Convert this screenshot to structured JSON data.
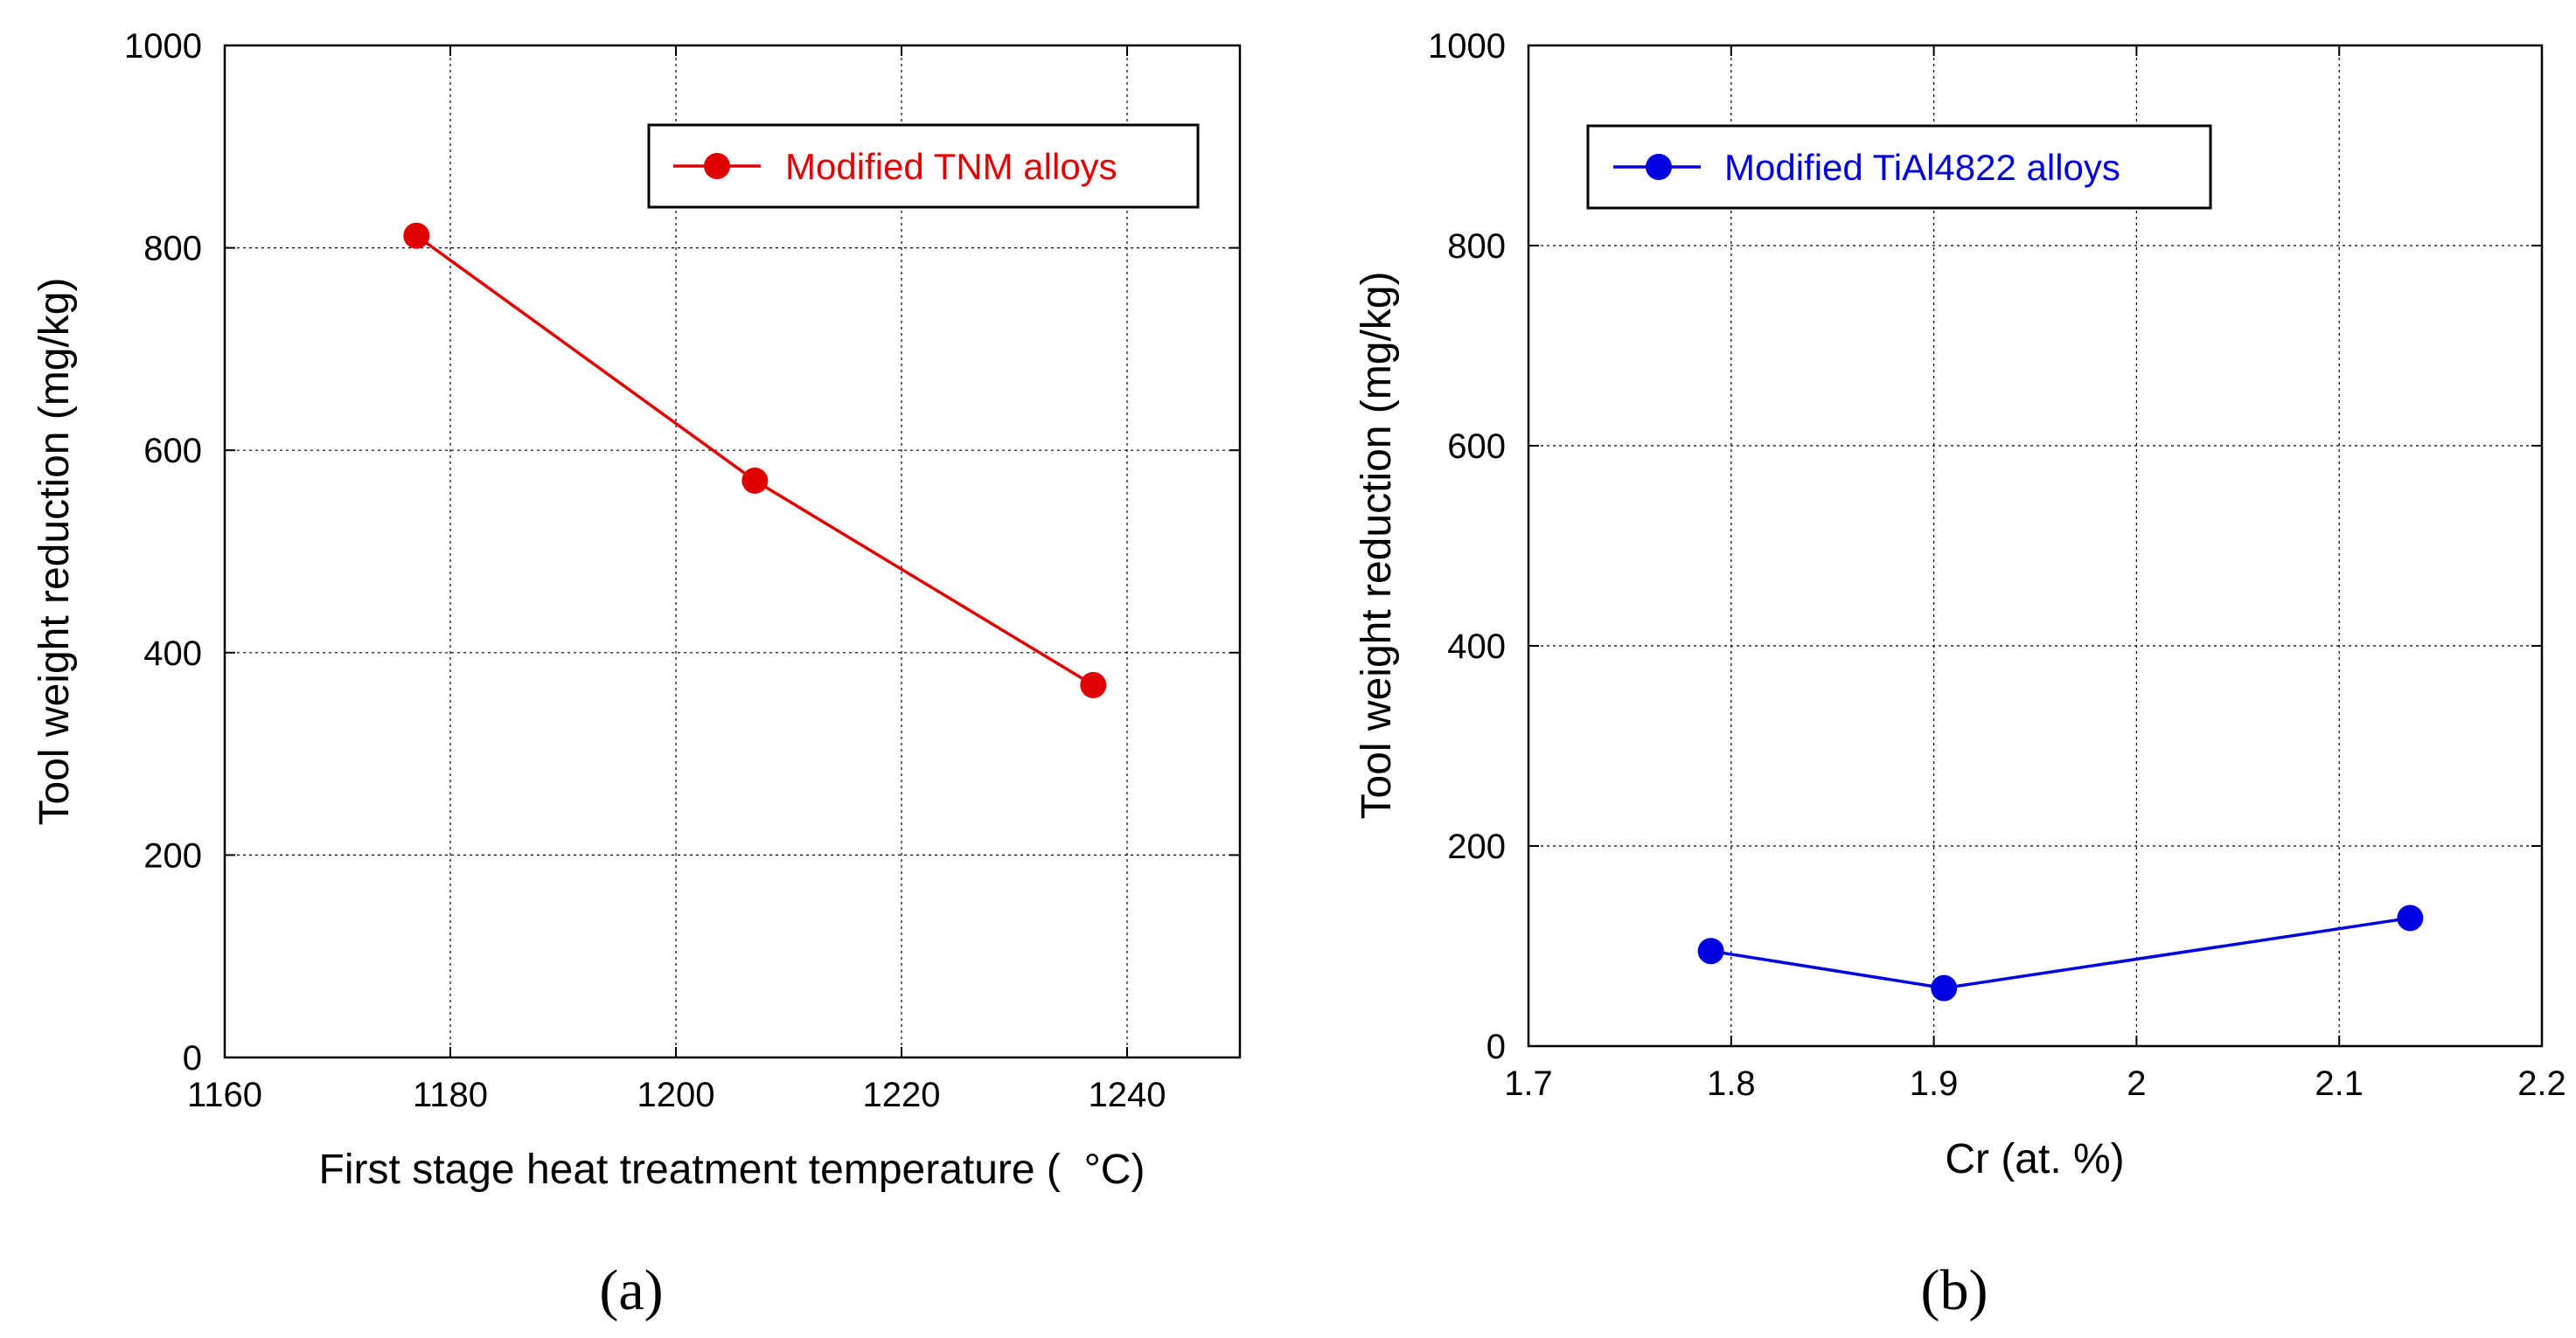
{
  "chart_data": [
    {
      "type": "line",
      "panel": "(a)",
      "xlabel": "First stage heat treatment temperature (  °C)",
      "ylabel": "Tool weight reduction (mg/kg)",
      "xlim": [
        1160,
        1250
      ],
      "ylim": [
        0,
        1000
      ],
      "xticks": [
        1160,
        1180,
        1200,
        1220,
        1240
      ],
      "yticks": [
        0,
        200,
        400,
        600,
        800,
        1000
      ],
      "grid": true,
      "legend_position": "top-right",
      "series": [
        {
          "name": "Modified TNM alloys",
          "color": "#e00000",
          "x": [
            1177,
            1207,
            1237
          ],
          "y": [
            812,
            570,
            368
          ]
        }
      ]
    },
    {
      "type": "line",
      "panel": "(b)",
      "xlabel": "Cr (at. %)",
      "ylabel": "Tool weight reduction (mg/kg)",
      "xlim": [
        1.7,
        2.2
      ],
      "ylim": [
        0,
        1000
      ],
      "xticks": [
        1.7,
        1.8,
        1.9,
        2,
        2.1,
        2.2
      ],
      "yticks": [
        0,
        200,
        400,
        600,
        800,
        1000
      ],
      "grid": true,
      "legend_position": "top-left",
      "series": [
        {
          "name": "Modified TiAl4822 alloys",
          "color": "#0000e0",
          "x": [
            1.79,
            1.905,
            2.135
          ],
          "y": [
            95,
            58,
            128
          ]
        }
      ]
    }
  ]
}
